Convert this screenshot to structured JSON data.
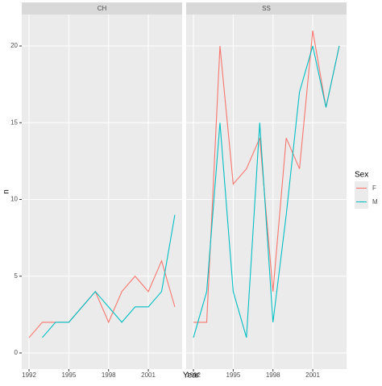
{
  "chart_data": {
    "type": "line",
    "x": [
      1992,
      1993,
      1994,
      1995,
      1996,
      1997,
      1998,
      1999,
      2000,
      2001,
      2002,
      2003
    ],
    "xlim": [
      1991.45,
      2003.55
    ],
    "xticks": [
      1992,
      1995,
      1998,
      2001
    ],
    "ylim": [
      -1.05,
      22.05
    ],
    "yticks": [
      0,
      5,
      10,
      15,
      20
    ],
    "xlabel": "Year",
    "ylabel": "n",
    "grid": true,
    "legend_title": "Sex",
    "legend_position": "right",
    "facets": [
      {
        "label": "CH",
        "series": [
          {
            "name": "F",
            "color": "#f8766d",
            "values": [
              1,
              2,
              2,
              2,
              3,
              4,
              2,
              4,
              5,
              4,
              6,
              3
            ]
          },
          {
            "name": "M",
            "color": "#00bfc4",
            "values": [
              null,
              1,
              2,
              2,
              3,
              4,
              3,
              2,
              3,
              3,
              4,
              9
            ]
          }
        ]
      },
      {
        "label": "SS",
        "series": [
          {
            "name": "F",
            "color": "#f8766d",
            "values": [
              2,
              2,
              20,
              11,
              12,
              14,
              4,
              14,
              12,
              21,
              16,
              20
            ]
          },
          {
            "name": "M",
            "color": "#00bfc4",
            "values": [
              1,
              4,
              15,
              4,
              1,
              15,
              2,
              9,
              17,
              20,
              16,
              20
            ]
          }
        ]
      }
    ]
  }
}
